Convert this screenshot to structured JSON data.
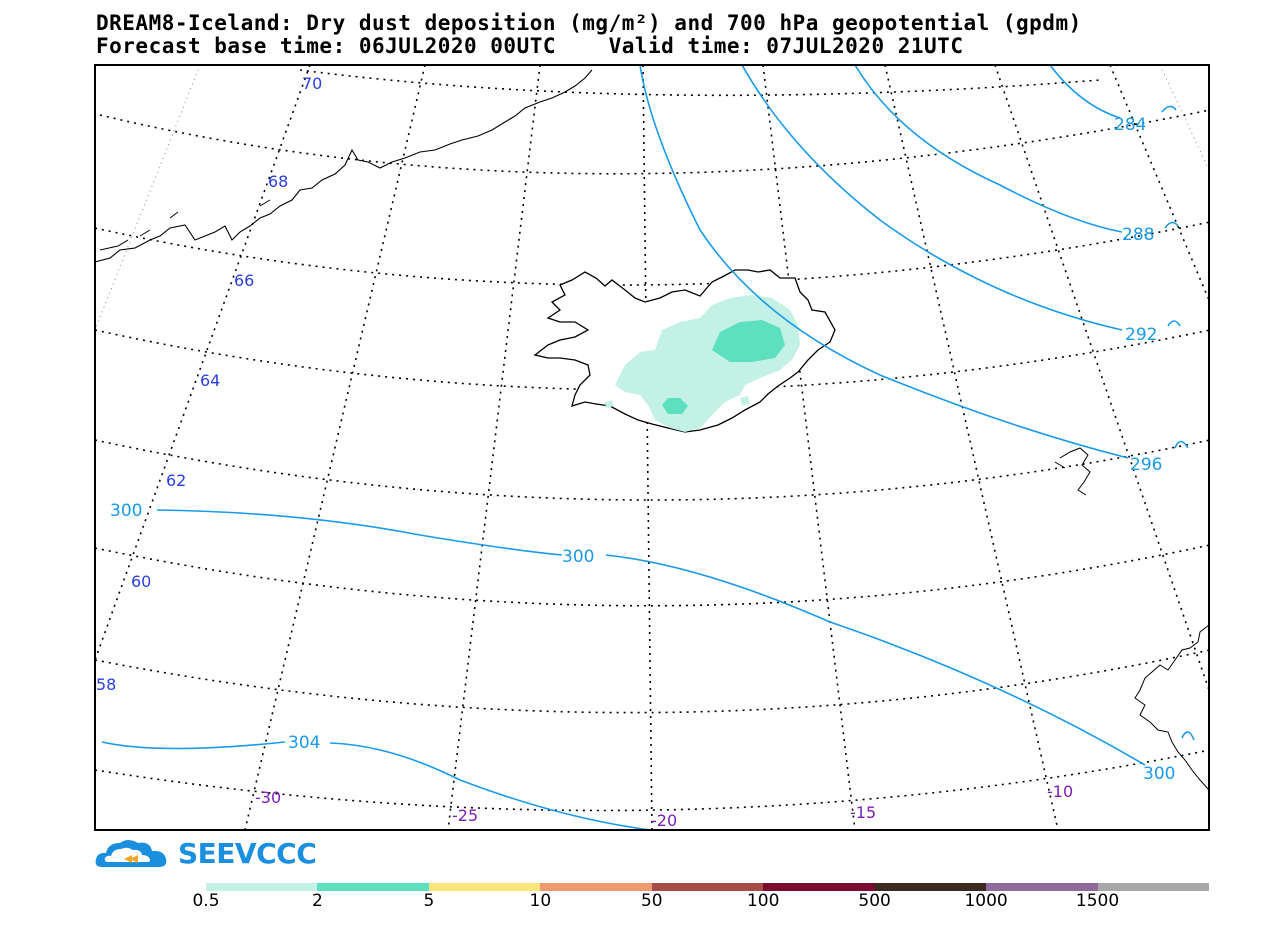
{
  "header": {
    "title_line1": "DREAM8-Iceland: Dry dust deposition (mg/m²) and 700 hPa geopotential (gpdm)",
    "base_time_label": "Forecast base time: 06JUL2020 00UTC",
    "valid_time_label": "Valid time: 07JUL2020 21UTC"
  },
  "map": {
    "latitude_labels": [
      "70",
      "68",
      "66",
      "64",
      "62",
      "60",
      "58"
    ],
    "longitude_labels": [
      "-30",
      "-25",
      "-20",
      "-15",
      "-10"
    ],
    "contour_labels": [
      "284",
      "288",
      "292",
      "296",
      "300",
      "300",
      "300",
      "304"
    ],
    "contour_color": "#1a9ae8",
    "graticule_label_lat_color": "#2a3fe0",
    "graticule_label_lon_color": "#7b1fb8"
  },
  "logo": {
    "text": "SEEVCCC",
    "icon": "cloud-logo-icon"
  },
  "legend": {
    "labels": [
      "0.5",
      "2",
      "5",
      "10",
      "50",
      "100",
      "500",
      "1000",
      "1500"
    ],
    "colors": [
      "#c4f1e6",
      "#5de0c0",
      "#fae57a",
      "#ee9a70",
      "#a54c46",
      "#7a0a30",
      "#3c2a1e",
      "#8e6a9e",
      "#a8a8a8"
    ]
  }
}
